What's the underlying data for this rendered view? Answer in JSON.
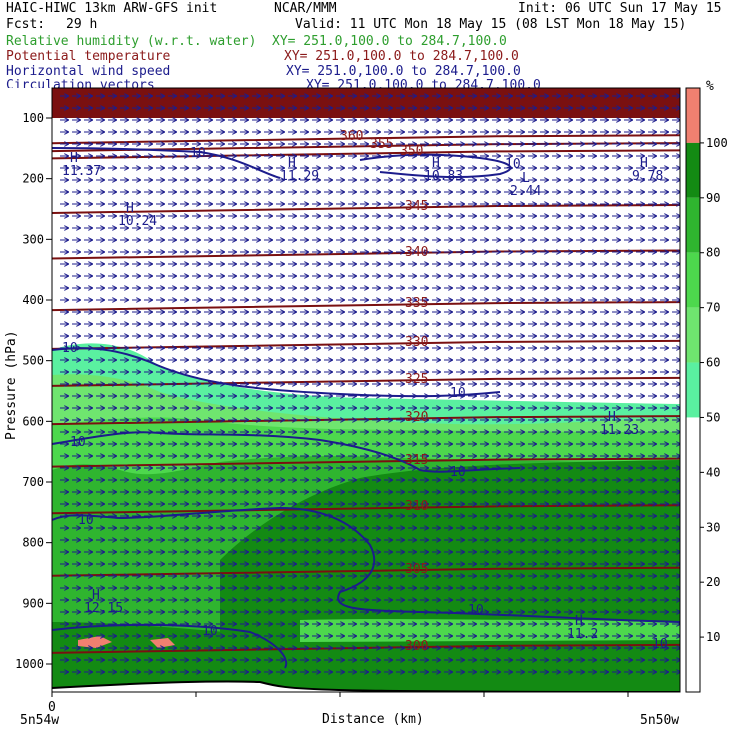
{
  "header": {
    "model": "HAIC-HIWC 13km ARW-GFS init",
    "center": "NCAR/MMM",
    "init": "Init: 06 UTC Sun 17 May 15",
    "fcst_label": "Fcst:",
    "fcst_value": "29 h",
    "valid": "Valid: 11 UTC Mon 18 May 15 (08 LST Mon 18 May 15)"
  },
  "legend": [
    {
      "name": "Relative humidity (w.r.t. water)",
      "xy": "XY= 251.0,100.0 to 284.7,100.0",
      "color": "#2e9e2e"
    },
    {
      "name": "Potential temperature",
      "xy": "XY= 251.0,100.0 to 284.7,100.0",
      "color": "#8b1a1a"
    },
    {
      "name": "Horizontal wind speed",
      "xy": "XY= 251.0,100.0 to 284.7,100.0",
      "color": "#1c1c8c"
    },
    {
      "name": "Circulation vectors",
      "xy": "XY= 251.0,100.0 to 284.7,100.0",
      "color": "#1c1c8c"
    }
  ],
  "chart_data": {
    "type": "cross-section",
    "ylabel": "Pressure (hPa)",
    "xlabel": "Distance (km)",
    "x_start_label": "5n54w",
    "x_end_label": "5n50w",
    "x_zero_label": "0",
    "y_ticks": [
      100,
      200,
      300,
      400,
      500,
      600,
      700,
      800,
      900,
      1000
    ],
    "y_scale": "linear, surface ~1020 hPa, top ~75 hPa",
    "colorbar": {
      "unit": "%",
      "ticks": [
        10,
        20,
        30,
        40,
        50,
        60,
        70,
        80,
        90,
        100
      ],
      "bands": [
        {
          "range": [
            100,
            110
          ],
          "color": "#f08070"
        },
        {
          "range": [
            90,
            100
          ],
          "color": "#138a13"
        },
        {
          "range": [
            80,
            90
          ],
          "color": "#2fb52f"
        },
        {
          "range": [
            70,
            80
          ],
          "color": "#4dd84d"
        },
        {
          "range": [
            60,
            70
          ],
          "color": "#6fe56f"
        },
        {
          "range": [
            50,
            60
          ],
          "color": "#5af0a0"
        },
        {
          "range": [
            0,
            50
          ],
          "color": "#ffffff"
        }
      ]
    },
    "theta_contours": [
      {
        "value": "360",
        "p": 135
      },
      {
        "value": "355",
        "p": 148
      },
      {
        "value": "350",
        "p": 160
      },
      {
        "value": "345",
        "p": 250
      },
      {
        "value": "340",
        "p": 325
      },
      {
        "value": "335",
        "p": 410
      },
      {
        "value": "330",
        "p": 474
      },
      {
        "value": "325",
        "p": 535
      },
      {
        "value": "320",
        "p": 598
      },
      {
        "value": "315",
        "p": 668
      },
      {
        "value": "310",
        "p": 745
      },
      {
        "value": "305",
        "p": 848
      },
      {
        "value": "300",
        "p": 975
      }
    ],
    "wind_labels": [
      {
        "text": "10",
        "p": 160
      },
      {
        "text": "10",
        "p": 177
      },
      {
        "text": "10",
        "p": 480
      },
      {
        "text": "10",
        "p": 555
      },
      {
        "text": "10",
        "p": 635
      },
      {
        "text": "10",
        "p": 685
      },
      {
        "text": "10",
        "p": 765
      },
      {
        "text": "10",
        "p": 912
      },
      {
        "text": "10",
        "p": 948
      },
      {
        "text": "10",
        "p": 968
      }
    ],
    "maxima": [
      {
        "mark": "H",
        "value": "11.37",
        "p": 193
      },
      {
        "mark": "H",
        "value": "11.29",
        "p": 200
      },
      {
        "mark": "H",
        "value": "10.83",
        "p": 200
      },
      {
        "mark": "H",
        "value": "9.78",
        "p": 200
      },
      {
        "mark": "H",
        "value": "10.24",
        "p": 275
      },
      {
        "mark": "H",
        "value": "11.23",
        "p": 620
      },
      {
        "mark": "H",
        "value": "12.15",
        "p": 912
      },
      {
        "mark": "H",
        "value": "11.2",
        "p": 955
      }
    ],
    "minima": [
      {
        "mark": "L",
        "value": "2.44",
        "p": 225
      }
    ]
  }
}
